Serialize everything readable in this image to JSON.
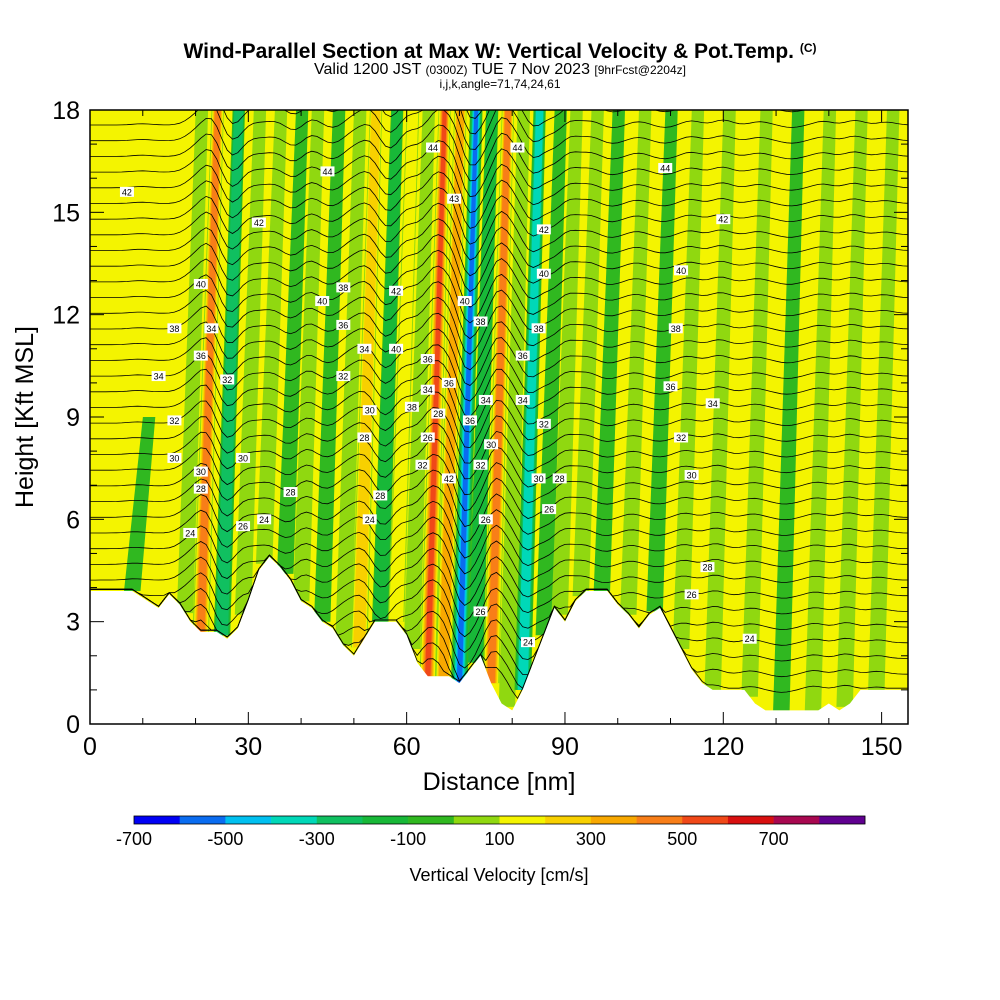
{
  "header": {
    "title": "Wind-Parallel Section at Max W: Vertical Velocity & Pot.Temp.",
    "title_mark": "(C)",
    "valid_prefix": "Valid 1200 JST",
    "valid_utc": "(0300Z)",
    "valid_date": "TUE 7 Nov 2023",
    "forecast": "[9hrFcst@2204z]",
    "params": "i,j,k,angle=71,74,24,61"
  },
  "chart_data": {
    "type": "heatmap",
    "title": "Wind-Parallel Section at Max W: Vertical Velocity & Pot.Temp.",
    "xlabel": "Distance [nm]",
    "ylabel": "Height [Kft MSL]",
    "xlim": [
      0,
      155
    ],
    "ylim": [
      0,
      18
    ],
    "xticks": [
      0,
      30,
      60,
      90,
      120,
      150
    ],
    "yticks": [
      0,
      3,
      6,
      9,
      12,
      15,
      18
    ],
    "background_level_cm_s": 100,
    "colorbar": {
      "label": "Vertical Velocity [cm/s]",
      "tick_labels": [
        "-700",
        "-500",
        "-300",
        "-100",
        "100",
        "300",
        "500",
        "700"
      ],
      "bins": [
        -700,
        -600,
        -500,
        -400,
        -300,
        -200,
        -100,
        0,
        100,
        200,
        300,
        400,
        500,
        600,
        700,
        800
      ],
      "colors": [
        "#0000f5",
        "#0a6cf0",
        "#00c0f0",
        "#00d8b8",
        "#10c060",
        "#18b838",
        "#30b820",
        "#90d810",
        "#f4f400",
        "#f8d000",
        "#f8a800",
        "#f87e18",
        "#f04818",
        "#d81010",
        "#a80850",
        "#600090"
      ]
    },
    "vertical_velocity_bands": [
      {
        "x": 8,
        "ytop": 9,
        "w": 30
      },
      {
        "x": 18,
        "ytop": 18,
        "w": 180
      },
      {
        "x": 21,
        "ytop": 18,
        "w": 520
      },
      {
        "x": 25,
        "ytop": 18,
        "w": -380
      },
      {
        "x": 29,
        "ytop": 18,
        "w": 60
      },
      {
        "x": 33,
        "ytop": 18,
        "w": 90
      },
      {
        "x": 37,
        "ytop": 18,
        "w": -150
      },
      {
        "x": 40,
        "ytop": 18,
        "w": 160
      },
      {
        "x": 44,
        "ytop": 18,
        "w": -80
      },
      {
        "x": 48,
        "ytop": 18,
        "w": 180
      },
      {
        "x": 51,
        "ytop": 18,
        "w": 350
      },
      {
        "x": 55,
        "ytop": 18,
        "w": -250
      },
      {
        "x": 58,
        "ytop": 18,
        "w": 220
      },
      {
        "x": 61,
        "ytop": 18,
        "w": 160
      },
      {
        "x": 64,
        "ytop": 18,
        "w": 620
      },
      {
        "x": 67,
        "ytop": 18,
        "w": 420
      },
      {
        "x": 70,
        "ytop": 18,
        "w": -620
      },
      {
        "x": 73,
        "ytop": 18,
        "w": -200
      },
      {
        "x": 76,
        "ytop": 18,
        "w": 560
      },
      {
        "x": 79,
        "ytop": 18,
        "w": 150
      },
      {
        "x": 82,
        "ytop": 18,
        "w": -420
      },
      {
        "x": 86,
        "ytop": 18,
        "w": -180
      },
      {
        "x": 89,
        "ytop": 18,
        "w": 120
      },
      {
        "x": 93,
        "ytop": 18,
        "w": 90
      },
      {
        "x": 97,
        "ytop": 18,
        "w": -70
      },
      {
        "x": 102,
        "ytop": 18,
        "w": 80
      },
      {
        "x": 107,
        "ytop": 18,
        "w": -60
      },
      {
        "x": 112,
        "ytop": 18,
        "w": 100
      },
      {
        "x": 118,
        "ytop": 18,
        "w": 120
      },
      {
        "x": 125,
        "ytop": 18,
        "w": 80
      },
      {
        "x": 131,
        "ytop": 18,
        "w": -60
      },
      {
        "x": 137,
        "ytop": 18,
        "w": 90
      },
      {
        "x": 143,
        "ytop": 18,
        "w": 110
      },
      {
        "x": 149,
        "ytop": 18,
        "w": 70
      }
    ],
    "terrain": [
      {
        "x": 0,
        "h": 3.9
      },
      {
        "x": 8,
        "h": 3.9
      },
      {
        "x": 11,
        "h": 3.6
      },
      {
        "x": 13,
        "h": 3.4
      },
      {
        "x": 15,
        "h": 3.8
      },
      {
        "x": 17,
        "h": 3.5
      },
      {
        "x": 19,
        "h": 3.0
      },
      {
        "x": 21,
        "h": 2.7
      },
      {
        "x": 24,
        "h": 2.7
      },
      {
        "x": 26,
        "h": 2.5
      },
      {
        "x": 28,
        "h": 2.8
      },
      {
        "x": 30,
        "h": 3.6
      },
      {
        "x": 32,
        "h": 4.5
      },
      {
        "x": 34,
        "h": 4.9
      },
      {
        "x": 36,
        "h": 4.6
      },
      {
        "x": 38,
        "h": 4.2
      },
      {
        "x": 40,
        "h": 3.6
      },
      {
        "x": 42,
        "h": 3.4
      },
      {
        "x": 44,
        "h": 3.0
      },
      {
        "x": 46,
        "h": 2.8
      },
      {
        "x": 48,
        "h": 2.3
      },
      {
        "x": 50,
        "h": 2.0
      },
      {
        "x": 52,
        "h": 2.5
      },
      {
        "x": 54,
        "h": 3.0
      },
      {
        "x": 58,
        "h": 3.0
      },
      {
        "x": 60,
        "h": 2.6
      },
      {
        "x": 62,
        "h": 1.8
      },
      {
        "x": 64,
        "h": 1.4
      },
      {
        "x": 68,
        "h": 1.4
      },
      {
        "x": 70,
        "h": 1.2
      },
      {
        "x": 72,
        "h": 1.6
      },
      {
        "x": 74,
        "h": 2.0
      },
      {
        "x": 76,
        "h": 1.2
      },
      {
        "x": 78,
        "h": 0.6
      },
      {
        "x": 80,
        "h": 0.4
      },
      {
        "x": 82,
        "h": 1.0
      },
      {
        "x": 84,
        "h": 1.8
      },
      {
        "x": 86,
        "h": 2.6
      },
      {
        "x": 88,
        "h": 3.4
      },
      {
        "x": 90,
        "h": 3.0
      },
      {
        "x": 92,
        "h": 3.6
      },
      {
        "x": 94,
        "h": 3.9
      },
      {
        "x": 98,
        "h": 3.9
      },
      {
        "x": 100,
        "h": 3.5
      },
      {
        "x": 102,
        "h": 3.2
      },
      {
        "x": 104,
        "h": 2.8
      },
      {
        "x": 106,
        "h": 3.2
      },
      {
        "x": 108,
        "h": 3.4
      },
      {
        "x": 110,
        "h": 2.8
      },
      {
        "x": 112,
        "h": 2.2
      },
      {
        "x": 114,
        "h": 1.6
      },
      {
        "x": 116,
        "h": 1.2
      },
      {
        "x": 118,
        "h": 1.0
      },
      {
        "x": 122,
        "h": 1.0
      },
      {
        "x": 124,
        "h": 1.0
      },
      {
        "x": 126,
        "h": 0.6
      },
      {
        "x": 128,
        "h": 0.4
      },
      {
        "x": 134,
        "h": 0.4
      },
      {
        "x": 138,
        "h": 0.4
      },
      {
        "x": 140,
        "h": 0.6
      },
      {
        "x": 142,
        "h": 0.4
      },
      {
        "x": 144,
        "h": 0.6
      },
      {
        "x": 146,
        "h": 1.0
      },
      {
        "x": 150,
        "h": 1.0
      },
      {
        "x": 155,
        "h": 1.0
      }
    ],
    "contour_labels": [
      {
        "text": "42",
        "x": 7,
        "y": 15.6
      },
      {
        "text": "44",
        "x": 45,
        "y": 16.2
      },
      {
        "text": "42",
        "x": 32,
        "y": 14.7
      },
      {
        "text": "40",
        "x": 21,
        "y": 12.9
      },
      {
        "text": "38",
        "x": 16,
        "y": 11.6
      },
      {
        "text": "34",
        "x": 23,
        "y": 11.6
      },
      {
        "text": "36",
        "x": 21,
        "y": 10.8
      },
      {
        "text": "34",
        "x": 13,
        "y": 10.2
      },
      {
        "text": "32",
        "x": 26,
        "y": 10.1
      },
      {
        "text": "32",
        "x": 16,
        "y": 8.9
      },
      {
        "text": "30",
        "x": 16,
        "y": 7.8
      },
      {
        "text": "30",
        "x": 29,
        "y": 7.8
      },
      {
        "text": "30",
        "x": 21,
        "y": 7.4
      },
      {
        "text": "28",
        "x": 21,
        "y": 6.9
      },
      {
        "text": "24",
        "x": 19,
        "y": 5.6
      },
      {
        "text": "26",
        "x": 29,
        "y": 5.8
      },
      {
        "text": "24",
        "x": 33,
        "y": 6.0
      },
      {
        "text": "28",
        "x": 38,
        "y": 6.8
      },
      {
        "text": "40",
        "x": 44,
        "y": 12.4
      },
      {
        "text": "38",
        "x": 48,
        "y": 12.8
      },
      {
        "text": "36",
        "x": 48,
        "y": 11.7
      },
      {
        "text": "34",
        "x": 52,
        "y": 11.0
      },
      {
        "text": "32",
        "x": 48,
        "y": 10.2
      },
      {
        "text": "30",
        "x": 53,
        "y": 9.2
      },
      {
        "text": "28",
        "x": 52,
        "y": 8.4
      },
      {
        "text": "28",
        "x": 55,
        "y": 6.7
      },
      {
        "text": "24",
        "x": 53,
        "y": 6.0
      },
      {
        "text": "42",
        "x": 58,
        "y": 12.7
      },
      {
        "text": "40",
        "x": 58,
        "y": 11.0
      },
      {
        "text": "38",
        "x": 61,
        "y": 9.3
      },
      {
        "text": "44",
        "x": 65,
        "y": 16.9
      },
      {
        "text": "36",
        "x": 64,
        "y": 10.7
      },
      {
        "text": "34",
        "x": 64,
        "y": 9.8
      },
      {
        "text": "28",
        "x": 66,
        "y": 9.1
      },
      {
        "text": "26",
        "x": 64,
        "y": 8.4
      },
      {
        "text": "32",
        "x": 63,
        "y": 7.6
      },
      {
        "text": "42",
        "x": 68,
        "y": 7.2
      },
      {
        "text": "43",
        "x": 69,
        "y": 15.4
      },
      {
        "text": "40",
        "x": 71,
        "y": 12.4
      },
      {
        "text": "36",
        "x": 68,
        "y": 10.0
      },
      {
        "text": "36",
        "x": 72,
        "y": 8.9
      },
      {
        "text": "38",
        "x": 74,
        "y": 11.8
      },
      {
        "text": "34",
        "x": 75,
        "y": 9.5
      },
      {
        "text": "32",
        "x": 74,
        "y": 7.6
      },
      {
        "text": "30",
        "x": 76,
        "y": 8.2
      },
      {
        "text": "26",
        "x": 75,
        "y": 6.0
      },
      {
        "text": "26",
        "x": 74,
        "y": 3.3
      },
      {
        "text": "44",
        "x": 81,
        "y": 16.9
      },
      {
        "text": "42",
        "x": 86,
        "y": 14.5
      },
      {
        "text": "40",
        "x": 86,
        "y": 13.2
      },
      {
        "text": "38",
        "x": 85,
        "y": 11.6
      },
      {
        "text": "36",
        "x": 82,
        "y": 10.8
      },
      {
        "text": "34",
        "x": 82,
        "y": 9.5
      },
      {
        "text": "32",
        "x": 86,
        "y": 8.8
      },
      {
        "text": "30",
        "x": 85,
        "y": 7.2
      },
      {
        "text": "26",
        "x": 87,
        "y": 6.3
      },
      {
        "text": "28",
        "x": 89,
        "y": 7.2
      },
      {
        "text": "24",
        "x": 83,
        "y": 2.4
      },
      {
        "text": "44",
        "x": 109,
        "y": 16.3
      },
      {
        "text": "42",
        "x": 120,
        "y": 14.8
      },
      {
        "text": "40",
        "x": 112,
        "y": 13.3
      },
      {
        "text": "38",
        "x": 111,
        "y": 11.6
      },
      {
        "text": "36",
        "x": 110,
        "y": 9.9
      },
      {
        "text": "34",
        "x": 118,
        "y": 9.4
      },
      {
        "text": "32",
        "x": 112,
        "y": 8.4
      },
      {
        "text": "30",
        "x": 114,
        "y": 7.3
      },
      {
        "text": "28",
        "x": 117,
        "y": 4.6
      },
      {
        "text": "26",
        "x": 114,
        "y": 3.8
      },
      {
        "text": "24",
        "x": 125,
        "y": 2.5
      }
    ]
  }
}
